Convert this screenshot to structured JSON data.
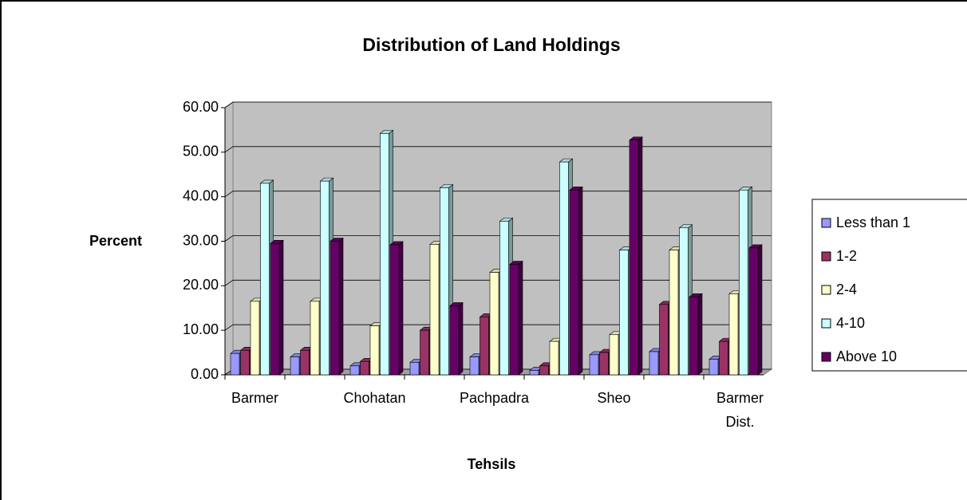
{
  "chart_data": {
    "type": "bar3d",
    "title": "Distribution of Land Holdings",
    "x_label": "Tehsils",
    "y_label": "Percent",
    "categories": [
      "Barmer",
      null,
      "Chohatan",
      null,
      "Pachpadra",
      null,
      "Sheo",
      null,
      "Barmer Dist."
    ],
    "series": [
      {
        "name": "Less than 1",
        "color": "#9999ff",
        "values": [
          4.8,
          4.0,
          2.0,
          2.8,
          4.0,
          1.0,
          4.5,
          5.2,
          3.5
        ]
      },
      {
        "name": "1-2",
        "color": "#993366",
        "values": [
          5.5,
          5.5,
          3.0,
          10.0,
          13.0,
          2.0,
          5.0,
          15.8,
          7.5
        ]
      },
      {
        "name": "2-4",
        "color": "#ffffcc",
        "values": [
          16.5,
          16.5,
          11.0,
          29.3,
          23.0,
          7.5,
          9.0,
          28.0,
          18.2
        ]
      },
      {
        "name": "4-10",
        "color": "#ccffff",
        "values": [
          43.0,
          43.5,
          54.2,
          42.0,
          34.5,
          47.8,
          28.0,
          33.0,
          41.5
        ]
      },
      {
        "name": "Above 10",
        "color": "#660066",
        "values": [
          29.5,
          30.0,
          29.2,
          15.5,
          24.8,
          41.5,
          52.7,
          17.5,
          28.5
        ]
      }
    ],
    "ylim": [
      0,
      60
    ],
    "yticks": [
      {
        "value": 0,
        "label": "0.00"
      },
      {
        "value": 10,
        "label": "10.00"
      },
      {
        "value": 20,
        "label": "20.00"
      },
      {
        "value": 30,
        "label": "30.00"
      },
      {
        "value": 40,
        "label": "40.00"
      },
      {
        "value": 50,
        "label": "50.00"
      },
      {
        "value": 60,
        "label": "60.00"
      }
    ],
    "grid": true,
    "wall_color": "#c0c0c0",
    "legend": "right"
  }
}
